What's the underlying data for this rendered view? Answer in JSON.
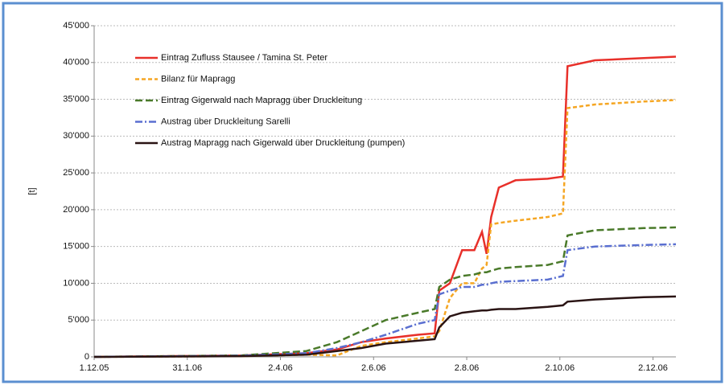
{
  "chart_data": {
    "type": "line",
    "y_label": "[t]",
    "x": [
      "2005-12-01",
      "2006-03-07",
      "2006-04-19",
      "2006-05-09",
      "2006-05-25",
      "2006-06-10",
      "2006-07-01",
      "2006-07-12",
      "2006-07-15",
      "2006-07-22",
      "2006-07-30",
      "2006-08-07",
      "2006-08-12",
      "2006-08-15",
      "2006-08-18",
      "2006-08-23",
      "2006-09-03",
      "2006-09-24",
      "2006-10-04",
      "2006-10-07",
      "2006-10-25",
      "2006-11-26",
      "2006-12-17"
    ],
    "xlim": [
      "2005-12-01",
      "2006-12-17"
    ],
    "xticks": [
      {
        "value": "2005-12-01",
        "label": "1.12.05"
      },
      {
        "value": "2006-01-31",
        "label": "31.1.06"
      },
      {
        "value": "2006-04-02",
        "label": "2.4.06"
      },
      {
        "value": "2006-06-02",
        "label": "2.6.06"
      },
      {
        "value": "2006-08-02",
        "label": "2.8.06"
      },
      {
        "value": "2006-10-02",
        "label": "2.10.06"
      },
      {
        "value": "2006-12-02",
        "label": "2.12.06"
      }
    ],
    "ylim": [
      0,
      45000
    ],
    "yticks": [
      0,
      {
        "value": 5000,
        "label": "5'000"
      },
      {
        "value": 10000,
        "label": "10'000"
      },
      {
        "value": 15000,
        "label": "15'000"
      },
      {
        "value": 20000,
        "label": "20'000"
      },
      {
        "value": 25000,
        "label": "25'000"
      },
      {
        "value": 30000,
        "label": "30'000"
      },
      {
        "value": 35000,
        "label": "35'000"
      },
      {
        "value": 40000,
        "label": "40'000"
      },
      {
        "value": 45000,
        "label": "45'000"
      }
    ],
    "grid": true,
    "legend": "upper left",
    "series": [
      {
        "name": "Eintrag Zufluss Stausee / Tamina St. Peter",
        "color": "#e8302a",
        "dash": "solid",
        "values": [
          0,
          200,
          500,
          1000,
          2000,
          2500,
          3000,
          3200,
          9000,
          10000,
          14500,
          14500,
          17000,
          14000,
          19000,
          23000,
          24000,
          24200,
          24500,
          39500,
          40300,
          40600,
          40800
        ]
      },
      {
        "name": "Bilanz für Mapragg",
        "color": "#f5a623",
        "dash": "dashed",
        "values": [
          0,
          100,
          300,
          200,
          1500,
          2000,
          2500,
          2800,
          3500,
          8000,
          10000,
          10000,
          12000,
          12500,
          18000,
          18200,
          18500,
          19000,
          19500,
          33800,
          34300,
          34700,
          34900
        ]
      },
      {
        "name": "Eintrag Gigerwald nach Mapragg über Druckleitung",
        "color": "#4a7a2a",
        "dash": "longdash",
        "values": [
          0,
          200,
          800,
          2000,
          3500,
          5000,
          6000,
          6500,
          9500,
          10500,
          11000,
          11200,
          11500,
          11500,
          11700,
          12000,
          12200,
          12500,
          13000,
          16500,
          17200,
          17500,
          17600
        ]
      },
      {
        "name": "Austrag über Druckleitung Sarelli",
        "color": "#5a6fd0",
        "dash": "dashdot",
        "values": [
          0,
          150,
          500,
          1200,
          2000,
          3000,
          4500,
          5000,
          8500,
          9000,
          9500,
          9500,
          9800,
          9800,
          10000,
          10200,
          10300,
          10500,
          11000,
          14500,
          15000,
          15200,
          15300
        ]
      },
      {
        "name": "Austrag Mapragg nach Gigerwald über Druckleitung (pumpen)",
        "color": "#2a1414",
        "dash": "solid",
        "values": [
          0,
          100,
          300,
          800,
          1200,
          1800,
          2200,
          2400,
          4000,
          5500,
          6000,
          6200,
          6300,
          6300,
          6400,
          6500,
          6500,
          6800,
          7000,
          7500,
          7800,
          8100,
          8200
        ]
      }
    ]
  }
}
